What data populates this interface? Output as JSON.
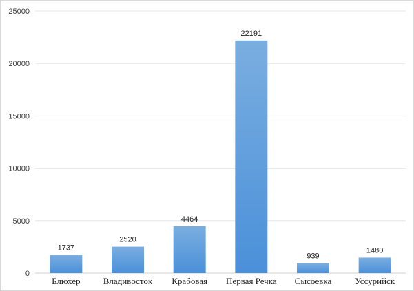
{
  "chart_data": {
    "type": "bar",
    "title": "",
    "xlabel": "",
    "ylabel": "",
    "categories": [
      "Блюхер",
      "Владивосток",
      "Крабовая",
      "Первая Речка",
      "Сысоевка",
      "Уссурийск"
    ],
    "values": [
      1737,
      2520,
      4464,
      22191,
      939,
      1480
    ],
    "data_labels": [
      "1737",
      "2520",
      "4464",
      "22191",
      "939",
      "1480"
    ],
    "yticks": [
      "0",
      "5000",
      "10000",
      "15000",
      "20000",
      "25000"
    ],
    "ylim": [
      0,
      25000
    ],
    "grid": true,
    "legend": "none",
    "colors": {
      "bar_top": "#7aaee0",
      "bar_bottom": "#4a90d9"
    }
  }
}
